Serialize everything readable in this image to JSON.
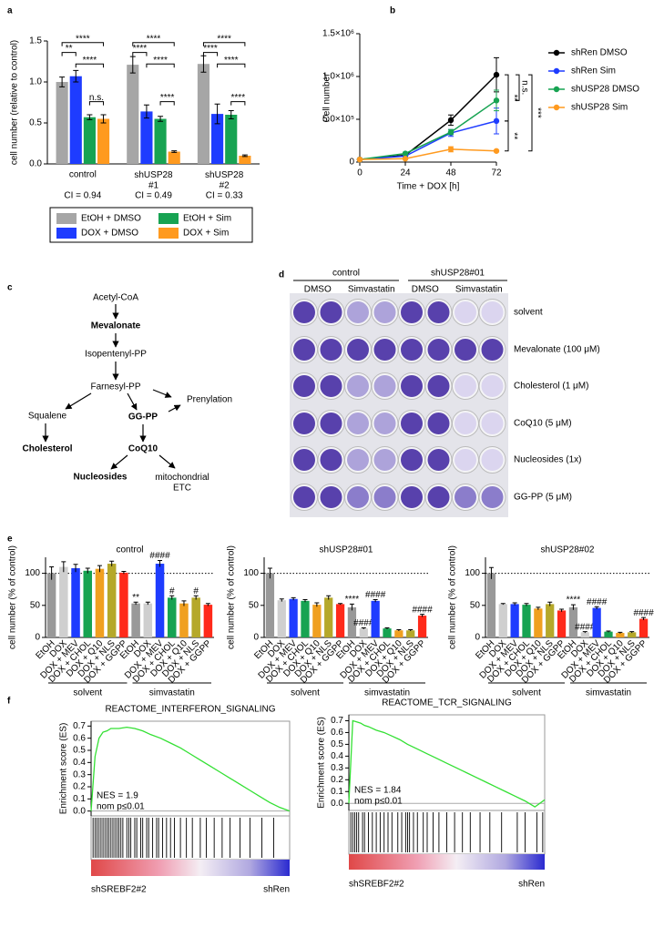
{
  "panel_labels": [
    "a",
    "b",
    "c",
    "d",
    "e",
    "f"
  ],
  "chart_data": [
    {
      "type": "bar",
      "ylabel": "cell number (relative to control)",
      "categories": [
        "control",
        "shUSP28\n#1",
        "shUSP28\n#2"
      ],
      "series": [
        {
          "name": "EtOH + DMSO",
          "color": "#a6a6a6",
          "values": [
            1.0,
            1.21,
            1.22
          ],
          "errors": [
            0.06,
            0.1,
            0.1
          ]
        },
        {
          "name": "DOX + DMSO",
          "color": "#1e3cff",
          "values": [
            1.07,
            0.64,
            0.61
          ],
          "errors": [
            0.07,
            0.08,
            0.12
          ]
        },
        {
          "name": "EtOH + Sim",
          "color": "#17a352",
          "values": [
            0.57,
            0.55,
            0.6
          ],
          "errors": [
            0.03,
            0.03,
            0.05
          ]
        },
        {
          "name": "DOX + Sim",
          "color": "#ff9a1f",
          "values": [
            0.55,
            0.15,
            0.1
          ],
          "errors": [
            0.05,
            0.01,
            0.01
          ]
        }
      ],
      "ylim": [
        0,
        1.5
      ],
      "yticks": [
        {
          "value": 0,
          "label": "0.0"
        },
        0.5,
        {
          "value": 1,
          "label": "1.0"
        },
        1.5
      ],
      "significance": [
        "**",
        "****",
        "****",
        "n.s.",
        "****",
        "****",
        "****",
        "****",
        "****",
        "****",
        "****",
        "****"
      ],
      "annotations": [
        "CI = 0.94",
        "CI = 0.49",
        "CI = 0.33"
      ],
      "legend": "bottom"
    },
    {
      "type": "line",
      "xlabel": "Time + DOX [h]",
      "ylabel": "Cell number",
      "x": [
        0,
        24,
        48,
        72
      ],
      "xlim": [
        0,
        72
      ],
      "xticks": [
        0,
        24,
        48,
        72
      ],
      "ylim": [
        0,
        1500000
      ],
      "yticks": [
        0,
        {
          "value": 500000,
          "label": "5.0×10⁵"
        },
        {
          "value": 1000000,
          "label": "1.0×10⁶"
        },
        {
          "value": 1500000,
          "label": "1.5×10⁶"
        }
      ],
      "markers": true,
      "series": [
        {
          "name": "shRen DMSO",
          "color": "#000000",
          "values": [
            30000,
            80000,
            490000,
            1020000
          ],
          "errors": [
            5000,
            15000,
            60000,
            200000
          ]
        },
        {
          "name": "shRen Sim",
          "color": "#1e3cff",
          "values": [
            30000,
            70000,
            340000,
            480000
          ],
          "errors": [
            5000,
            10000,
            40000,
            150000
          ]
        },
        {
          "name": "shUSP28 DMSO",
          "color": "#17a352",
          "values": [
            30000,
            100000,
            350000,
            720000
          ],
          "errors": [
            5000,
            15000,
            30000,
            120000
          ]
        },
        {
          "name": "shUSP28 Sim",
          "color": "#ff9a1f",
          "values": [
            30000,
            40000,
            150000,
            130000
          ],
          "errors": [
            5000,
            5000,
            30000,
            10000
          ]
        }
      ],
      "significance": [
        "**",
        "n.s.",
        "**",
        "***"
      ],
      "legend": "right"
    },
    {
      "type": "bar",
      "title": "control",
      "ylabel": "cell number (% of control)",
      "categories": [
        "EtOH",
        "DOX",
        "DOX + MEV",
        "DOX + CHOL",
        "DOX + Q10",
        "DOX + NLS",
        "DOX + GGPP",
        "EtOH",
        "DOX",
        "DOX + MEV",
        "DOX + CHOL",
        "DOX + Q10",
        "DOX + NLS",
        "DOX + GGPP"
      ],
      "colors": [
        "#999999",
        "#cfcfcf",
        "#1e3cff",
        "#17a352",
        "#f0a020",
        "#b5a82a",
        "#ff2a1a",
        "#999999",
        "#cfcfcf",
        "#1e3cff",
        "#17a352",
        "#f0a020",
        "#b5a82a",
        "#ff2a1a"
      ],
      "values": [
        100,
        110,
        108,
        104,
        107,
        115,
        101,
        53,
        53,
        115,
        62,
        53,
        62,
        51
      ],
      "errors": [
        10,
        8,
        6,
        4,
        5,
        4,
        2,
        2,
        2,
        5,
        3,
        4,
        3,
        2
      ],
      "sig_labels": [
        null,
        null,
        null,
        null,
        null,
        null,
        null,
        "**",
        null,
        "####",
        "#",
        null,
        "#",
        null
      ],
      "ylim": [
        0,
        125
      ],
      "yticks": [
        0,
        50,
        100
      ],
      "refline": 100,
      "groups": [
        "solvent",
        "simvastatin"
      ]
    },
    {
      "type": "bar",
      "title": "shUSP28#01",
      "ylabel": "cell number (% of control)",
      "categories": [
        "EtOH",
        "DOX",
        "DOX + MEV",
        "DOX + CHOL",
        "DOX + Q10",
        "DOX + NLS",
        "DOX + GGPP",
        "EtOH",
        "DOX",
        "DOX + MEV",
        "DOX + CHOL",
        "DOX + Q10",
        "DOX + NLS",
        "DOX + GGPP"
      ],
      "colors": [
        "#999999",
        "#cfcfcf",
        "#1e3cff",
        "#17a352",
        "#f0a020",
        "#b5a82a",
        "#ff2a1a",
        "#999999",
        "#cfcfcf",
        "#1e3cff",
        "#17a352",
        "#f0a020",
        "#b5a82a",
        "#ff2a1a"
      ],
      "values": [
        100,
        58,
        60,
        57,
        51,
        62,
        52,
        47,
        14,
        57,
        14,
        11,
        11,
        34
      ],
      "errors": [
        8,
        2,
        2,
        2,
        3,
        3,
        1,
        5,
        1,
        2,
        1,
        1,
        1,
        2
      ],
      "sig_labels": [
        null,
        null,
        null,
        null,
        null,
        null,
        null,
        "****",
        "####",
        "####",
        null,
        null,
        null,
        "####"
      ],
      "ylim": [
        0,
        125
      ],
      "yticks": [
        0,
        50,
        100
      ],
      "refline": 100,
      "groups": [
        "solvent",
        "simvastatin"
      ]
    },
    {
      "type": "bar",
      "title": "shUSP28#02",
      "ylabel": "cell number (% of control)",
      "categories": [
        "EtOH",
        "DOX",
        "DOX + MEV",
        "DOX + CHOL",
        "DOX + Q10",
        "DOX + NLS",
        "DOX + GGPP",
        "EtOH",
        "DOX",
        "DOX + MEV",
        "DOX + CHOL",
        "DOX + Q10",
        "DOX + NLS",
        "DOX + GGPP"
      ],
      "colors": [
        "#999999",
        "#cfcfcf",
        "#1e3cff",
        "#17a352",
        "#f0a020",
        "#b5a82a",
        "#ff2a1a",
        "#999999",
        "#cfcfcf",
        "#1e3cff",
        "#17a352",
        "#f0a020",
        "#b5a82a",
        "#ff2a1a"
      ],
      "values": [
        100,
        52,
        52,
        51,
        45,
        52,
        42,
        47,
        8,
        46,
        9,
        7,
        8,
        29
      ],
      "errors": [
        9,
        1,
        2,
        2,
        2,
        3,
        2,
        4,
        1,
        2,
        1,
        1,
        1,
        2
      ],
      "sig_labels": [
        null,
        null,
        null,
        null,
        null,
        null,
        null,
        "****",
        "####",
        "####",
        null,
        null,
        null,
        "####"
      ],
      "ylim": [
        0,
        125
      ],
      "yticks": [
        0,
        50,
        100
      ],
      "refline": 100,
      "groups": [
        "solvent",
        "simvastatin"
      ]
    },
    {
      "type": "line",
      "title": "REACTOME_INTERFERON_SIGNALING",
      "ylabel": "Enrichment score (ES)",
      "x": [
        0,
        2,
        4,
        6,
        8,
        10,
        14,
        18,
        22,
        26,
        30,
        35,
        40,
        45,
        50,
        55,
        60,
        65,
        70,
        75,
        80,
        85,
        90,
        95,
        100
      ],
      "xlim": [
        0,
        100
      ],
      "series": [
        {
          "color": "#33e033",
          "values": [
            0,
            0.45,
            0.6,
            0.65,
            0.66,
            0.68,
            0.68,
            0.69,
            0.68,
            0.66,
            0.63,
            0.6,
            0.56,
            0.52,
            0.47,
            0.42,
            0.37,
            0.32,
            0.27,
            0.22,
            0.17,
            0.12,
            0.07,
            0.03,
            0
          ]
        }
      ],
      "ylim": [
        -0.04,
        0.74
      ],
      "yticks": [
        {
          "value": 0,
          "label": "0.0"
        },
        0.1,
        0.2,
        0.3,
        0.4,
        0.5,
        0.6,
        0.7
      ],
      "hits": [
        1,
        2,
        3,
        4,
        5,
        6,
        7,
        8,
        9,
        10,
        11,
        12,
        13,
        14,
        15,
        16,
        18,
        19,
        20,
        22,
        23,
        25,
        26,
        28,
        29,
        31,
        33,
        34,
        36,
        38,
        40,
        42,
        45,
        48,
        51,
        55,
        58,
        62,
        66,
        70,
        75,
        80,
        86,
        92
      ],
      "annotations": [
        "NES = 1.9",
        "nom p≤0.01"
      ],
      "xlabels": [
        "shSREBF2#2",
        "shRen"
      ]
    },
    {
      "type": "line",
      "title": "REACTOME_TCR_SIGNALING",
      "ylabel": "Enrichment score (ES)",
      "x": [
        0,
        2,
        4,
        6,
        8,
        10,
        14,
        18,
        22,
        26,
        30,
        35,
        40,
        45,
        50,
        55,
        60,
        65,
        70,
        75,
        80,
        85,
        90,
        95,
        100
      ],
      "xlim": [
        0,
        100
      ],
      "series": [
        {
          "color": "#33e033",
          "values": [
            0,
            0.7,
            0.69,
            0.68,
            0.66,
            0.65,
            0.62,
            0.6,
            0.57,
            0.54,
            0.5,
            0.46,
            0.42,
            0.38,
            0.34,
            0.3,
            0.26,
            0.22,
            0.18,
            0.14,
            0.1,
            0.06,
            0.02,
            -0.03,
            0.03
          ]
        }
      ],
      "ylim": [
        -0.06,
        0.75
      ],
      "yticks": [
        {
          "value": 0,
          "label": "0.0"
        },
        0.1,
        0.2,
        0.3,
        0.4,
        0.5,
        0.6,
        0.7
      ],
      "hits": [
        1,
        2,
        3,
        4,
        5,
        7,
        8,
        10,
        12,
        14,
        16,
        18,
        20,
        22,
        25,
        27,
        29,
        30,
        31,
        33,
        35,
        38,
        40,
        43,
        46,
        50,
        54,
        58,
        62,
        67,
        72,
        78,
        86,
        90,
        96,
        99
      ],
      "annotations": [
        "NES = 1.84",
        "nom p≤0.01"
      ],
      "xlabels": [
        "shSREBF2#2",
        "shRen"
      ]
    }
  ],
  "pathway": {
    "nodes": [
      "Acetyl-CoA",
      "Mevalonate",
      "Isopentenyl-PP",
      "Farnesyl-PP",
      "Prenylation",
      "Squalene",
      "GG-PP",
      "Cholesterol",
      "CoQ10",
      "Nucleosides",
      "mitochondrial\nETC"
    ]
  },
  "plates": {
    "groups": [
      "control",
      "shUSP28#01"
    ],
    "columns": [
      "DMSO",
      "Simvastatin",
      "DMSO",
      "Simvastatin"
    ],
    "rows": [
      "solvent",
      "Mevalonate (100 μM)",
      "Cholesterol (1 μM)",
      "CoQ10 (5 μM)",
      "Nucleosides (1x)",
      "GG-PP (5 μM)"
    ]
  }
}
